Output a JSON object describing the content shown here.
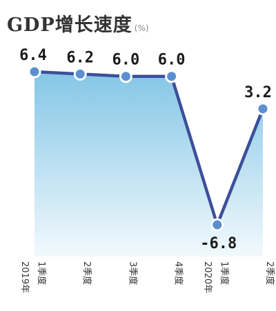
{
  "chart_data": {
    "type": "area",
    "title": "GDP增长速度",
    "unit": "(%)",
    "categories": [
      {
        "year": "2019年",
        "quarter": "1季度"
      },
      {
        "year": "",
        "quarter": "2季度"
      },
      {
        "year": "",
        "quarter": "3季度"
      },
      {
        "year": "",
        "quarter": "4季度"
      },
      {
        "year": "2020年",
        "quarter": "1季度"
      },
      {
        "year": "",
        "quarter": "2季度"
      }
    ],
    "values": [
      6.4,
      6.2,
      6.0,
      6.0,
      -6.8,
      3.2
    ],
    "value_labels": [
      "6.4",
      "6.2",
      "6.0",
      "6.0",
      "-6.8",
      "3.2"
    ],
    "ylim": [
      -6.8,
      6.4
    ],
    "grid": false,
    "colors": {
      "line": "#3b4f9a",
      "area_top": "#84c6e6",
      "area_bottom": "#f2f9fd",
      "marker": "#5b8fd0",
      "marker_stroke": "#ffffff"
    }
  }
}
